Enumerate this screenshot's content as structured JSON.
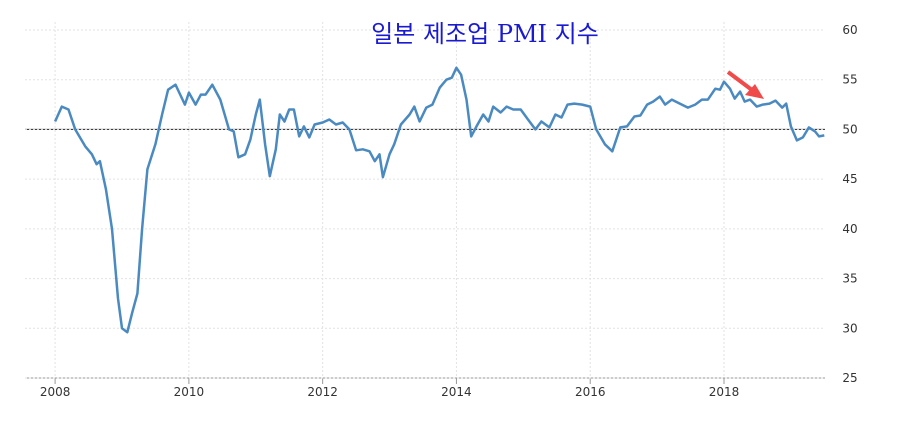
{
  "chart_data": {
    "type": "line",
    "title": "일본 제조업 PMI 지수",
    "x": [
      2008.0,
      2008.1,
      2008.2,
      2008.3,
      2008.45,
      2008.55,
      2008.62,
      2008.67,
      2008.76,
      2008.85,
      2008.94,
      2009.0,
      2009.08,
      2009.15,
      2009.23,
      2009.3,
      2009.38,
      2009.5,
      2009.6,
      2009.69,
      2009.8,
      2009.87,
      2009.94,
      2010.0,
      2010.1,
      2010.18,
      2010.25,
      2010.35,
      2010.47,
      2010.6,
      2010.67,
      2010.74,
      2010.84,
      2010.92,
      2011.0,
      2011.06,
      2011.14,
      2011.21,
      2011.3,
      2011.36,
      2011.43,
      2011.5,
      2011.57,
      2011.65,
      2011.72,
      2011.8,
      2011.88,
      2012.0,
      2012.1,
      2012.2,
      2012.3,
      2012.4,
      2012.5,
      2012.6,
      2012.7,
      2012.78,
      2012.85,
      2012.9,
      2013.0,
      2013.07,
      2013.17,
      2013.3,
      2013.37,
      2013.45,
      2013.55,
      2013.64,
      2013.75,
      2013.85,
      2013.93,
      2014.0,
      2014.07,
      2014.15,
      2014.22,
      2014.3,
      2014.4,
      2014.48,
      2014.55,
      2014.66,
      2014.75,
      2014.85,
      2014.96,
      2015.07,
      2015.18,
      2015.27,
      2015.39,
      2015.48,
      2015.57,
      2015.66,
      2015.76,
      2015.88,
      2016.0,
      2016.09,
      2016.22,
      2016.33,
      2016.45,
      2016.55,
      2016.66,
      2016.75,
      2016.85,
      2016.94,
      2017.04,
      2017.12,
      2017.22,
      2017.34,
      2017.46,
      2017.57,
      2017.67,
      2017.76,
      2017.87,
      2017.94,
      2018.0,
      2018.09,
      2018.16,
      2018.24,
      2018.31,
      2018.39,
      2018.49,
      2018.58,
      2018.68,
      2018.77,
      2018.87,
      2018.93,
      2019.0,
      2019.09,
      2019.18,
      2019.27,
      2019.36,
      2019.42,
      2019.5
    ],
    "series": [
      {
        "color": "#4a8ac0",
        "values": [
          50.8,
          52.3,
          52,
          50,
          48.3,
          47.5,
          46.5,
          46.8,
          44,
          40,
          33,
          30,
          29.6,
          31.5,
          33.5,
          40,
          46,
          48.5,
          51.5,
          54,
          54.5,
          53.5,
          52.5,
          53.7,
          52.5,
          53.5,
          53.5,
          54.5,
          53,
          50,
          49.8,
          47.2,
          47.5,
          49,
          51.5,
          53,
          48.5,
          45.3,
          48,
          51.5,
          50.8,
          52,
          52,
          49.3,
          50.3,
          49.2,
          50.5,
          50.7,
          51,
          50.5,
          50.7,
          50,
          47.9,
          48,
          47.8,
          46.8,
          47.5,
          45.2,
          47.5,
          48.5,
          50.5,
          51.5,
          52.3,
          50.8,
          52.2,
          52.5,
          54.2,
          55,
          55.2,
          56.2,
          55.5,
          53,
          49.3,
          50.3,
          51.5,
          50.8,
          52.3,
          51.7,
          52.3,
          52,
          52,
          51,
          50,
          50.8,
          50.2,
          51.5,
          51.2,
          52.5,
          52.6,
          52.5,
          52.3,
          50,
          48.5,
          47.8,
          50.2,
          50.3,
          51.3,
          51.4,
          52.5,
          52.8,
          53.3,
          52.5,
          53,
          52.6,
          52.2,
          52.5,
          53,
          53,
          54.1,
          54,
          54.8,
          54.1,
          53.1,
          53.8,
          52.8,
          53,
          52.3,
          52.5,
          52.6,
          52.9,
          52.2,
          52.6,
          50.3,
          48.9,
          49.2,
          50.2,
          49.8,
          49.3,
          49.4
        ]
      }
    ],
    "reference_line": 50,
    "xlim": [
      2007.55,
      2019.51
    ],
    "xticks": [
      2008,
      2010,
      2012,
      2014,
      2016,
      2018
    ],
    "ylim": [
      25,
      60
    ],
    "yticks": [
      25,
      30,
      35,
      40,
      45,
      50,
      55,
      60
    ],
    "grid": true
  }
}
